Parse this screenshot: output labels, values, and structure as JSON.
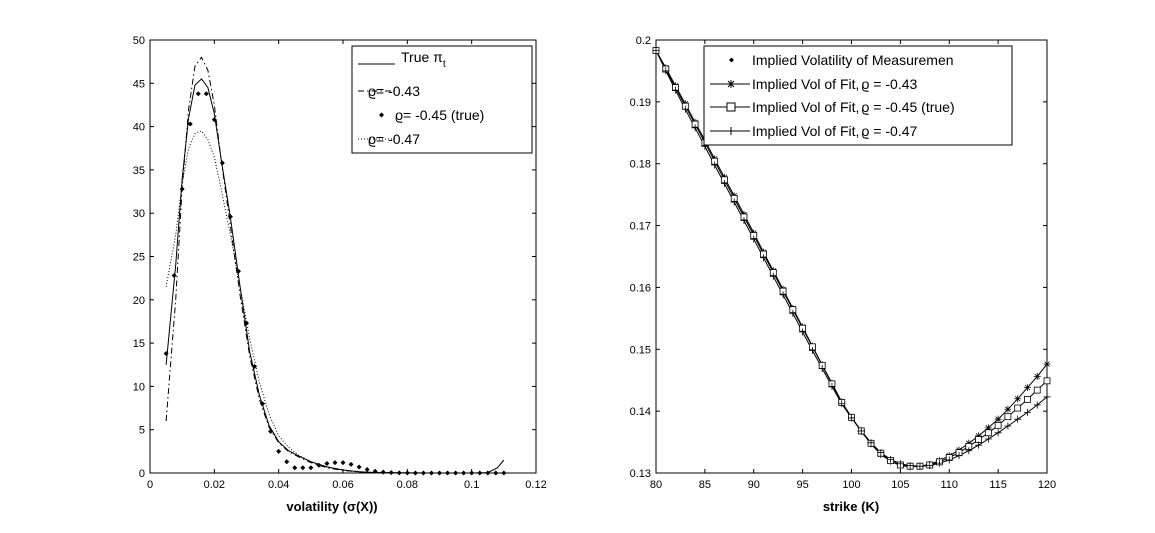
{
  "chart_data": [
    {
      "type": "line",
      "xlabel": "volatility (σ(X))",
      "ylabel": "",
      "xlim": [
        0,
        0.12
      ],
      "ylim": [
        0,
        50
      ],
      "xticks": [
        "0",
        "0.02",
        "0.04",
        "0.06",
        "0.08",
        "0.1",
        "0.12"
      ],
      "yticks": [
        "0",
        "5",
        "10",
        "15",
        "20",
        "25",
        "30",
        "35",
        "40",
        "45",
        "50"
      ],
      "legend_position": "top-right",
      "series": [
        {
          "name": "True πt",
          "legend_label": "True π",
          "legend_sub": "t",
          "style": "solid",
          "x": [
            0.005,
            0.008,
            0.01,
            0.012,
            0.014,
            0.016,
            0.018,
            0.02,
            0.022,
            0.025,
            0.028,
            0.031,
            0.034,
            0.037,
            0.04,
            0.043,
            0.046,
            0.05,
            0.055,
            0.06,
            0.065,
            0.07,
            0.08,
            0.09,
            0.1,
            0.105,
            0.108,
            0.11
          ],
          "values": [
            12.5,
            24,
            34,
            41,
            44.8,
            45.5,
            44.5,
            41.5,
            36.5,
            29.5,
            21.5,
            14,
            9,
            5.5,
            3.6,
            2.6,
            2.0,
            1.3,
            0.7,
            0.35,
            0.15,
            0.05,
            0.01,
            0.0,
            0.0,
            0.05,
            0.6,
            1.5
          ]
        },
        {
          "name": "ϱ= -0.43",
          "legend_label": "ϱ= -0.43",
          "style": "dashdot",
          "x": [
            0.005,
            0.008,
            0.01,
            0.012,
            0.014,
            0.016,
            0.018,
            0.02,
            0.022,
            0.025,
            0.028,
            0.031,
            0.034,
            0.037,
            0.04,
            0.043,
            0.046,
            0.05,
            0.055,
            0.06,
            0.065,
            0.07,
            0.08,
            0.09,
            0.1,
            0.11
          ],
          "values": [
            6,
            20,
            33,
            42,
            47,
            48,
            46.5,
            42.5,
            36.5,
            28.5,
            20.5,
            13.5,
            8.5,
            5.3,
            3.5,
            2.5,
            1.9,
            1.2,
            0.6,
            0.3,
            0.12,
            0.05,
            0.01,
            0.0,
            0.0,
            0.0
          ]
        },
        {
          "name": "ϱ= -0.45 (true)",
          "legend_label": "ϱ= -0.45 (true)",
          "style": "dots",
          "x": [
            0.005,
            0.0075,
            0.01,
            0.0125,
            0.015,
            0.0175,
            0.02,
            0.0225,
            0.025,
            0.0275,
            0.03,
            0.0325,
            0.035,
            0.0375,
            0.04,
            0.0425,
            0.045,
            0.0475,
            0.05,
            0.0525,
            0.055,
            0.0575,
            0.06,
            0.0625,
            0.065,
            0.0675,
            0.07,
            0.0725,
            0.075,
            0.0775,
            0.08,
            0.0825,
            0.085,
            0.0875,
            0.09,
            0.0925,
            0.095,
            0.0975,
            0.1,
            0.1025,
            0.105,
            0.1075,
            0.11
          ],
          "values": [
            13.8,
            22.8,
            32.8,
            40.3,
            43.8,
            43.8,
            40.8,
            35.8,
            29.6,
            23.3,
            17.3,
            12.3,
            8.0,
            4.8,
            2.5,
            1.3,
            0.6,
            0.6,
            0.6,
            0.9,
            1.1,
            1.2,
            1.2,
            1.0,
            0.7,
            0.4,
            0.2,
            0.1,
            0.05,
            0.02,
            0.01,
            0.0,
            0.0,
            0.0,
            0.0,
            0.0,
            0.0,
            0.0,
            0.0,
            0.0,
            0.0,
            0.0,
            0.0
          ]
        },
        {
          "name": "ϱ= -0.47",
          "legend_label": "ϱ= -0.47",
          "style": "dotted",
          "x": [
            0.005,
            0.008,
            0.01,
            0.012,
            0.014,
            0.016,
            0.018,
            0.02,
            0.022,
            0.025,
            0.028,
            0.031,
            0.034,
            0.037,
            0.04,
            0.043,
            0.046,
            0.05,
            0.055,
            0.06,
            0.065,
            0.07,
            0.08,
            0.09,
            0.1,
            0.11
          ],
          "values": [
            21.5,
            27.5,
            33.5,
            37.5,
            39.2,
            39.5,
            38.5,
            36.5,
            33,
            27.5,
            21.5,
            15.5,
            10.5,
            6.8,
            4.3,
            3.0,
            2.1,
            1.3,
            0.7,
            0.35,
            0.15,
            0.06,
            0.01,
            0.0,
            0.0,
            0.0
          ]
        }
      ]
    },
    {
      "type": "line",
      "xlabel": "strike (K)",
      "ylabel": "",
      "xlim": [
        80,
        120
      ],
      "ylim": [
        0.13,
        0.2
      ],
      "xticks": [
        "80",
        "85",
        "90",
        "95",
        "100",
        "105",
        "110",
        "115",
        "120"
      ],
      "yticks": [
        "0.13",
        "0.14",
        "0.15",
        "0.16",
        "0.17",
        "0.18",
        "0.19",
        "0.2"
      ],
      "legend_position": "top-right",
      "x": [
        80,
        81,
        82,
        83,
        84,
        85,
        86,
        87,
        88,
        89,
        90,
        91,
        92,
        93,
        94,
        95,
        96,
        97,
        98,
        99,
        100,
        101,
        102,
        103,
        104,
        105,
        106,
        107,
        108,
        109,
        110,
        111,
        112,
        113,
        114,
        115,
        116,
        117,
        118,
        119,
        120
      ],
      "series": [
        {
          "name": "Implied Volatility of Measuremen",
          "legend_label": "Implied Volatility of Measuremen",
          "style": "dots",
          "values": [
            0.1983,
            0.1952,
            0.1922,
            0.1892,
            0.1863,
            0.1833,
            0.1803,
            0.1773,
            0.1743,
            0.1713,
            0.1683,
            0.1653,
            0.1623,
            0.1593,
            0.1563,
            0.1533,
            0.1503,
            0.1473,
            0.1443,
            0.1414,
            0.139,
            0.1368,
            0.1348,
            0.1332,
            0.1321,
            0.1314,
            0.1311,
            0.1311,
            0.1313,
            0.1318,
            0.1325,
            0.1333,
            0.1343,
            0.1354,
            0.1365,
            0.1377,
            0.1391,
            0.1405,
            0.1419,
            0.1434,
            0.1449
          ]
        },
        {
          "name": "Implied Vol of Fit, ϱ = -0.43",
          "legend_label": "Implied Vol of Fit,",
          "legend_rho": "ϱ = -0.43",
          "style": "star",
          "values": [
            0.1983,
            0.1955,
            0.1926,
            0.1897,
            0.1867,
            0.1838,
            0.1808,
            0.1778,
            0.1748,
            0.1718,
            0.1688,
            0.1657,
            0.1627,
            0.1597,
            0.1566,
            0.1536,
            0.1505,
            0.1475,
            0.1445,
            0.1415,
            0.139,
            0.1367,
            0.1347,
            0.133,
            0.1319,
            0.1312,
            0.131,
            0.1311,
            0.1314,
            0.132,
            0.1328,
            0.1337,
            0.1348,
            0.136,
            0.1373,
            0.1387,
            0.1403,
            0.142,
            0.1438,
            0.1456,
            0.1476
          ]
        },
        {
          "name": "Implied Vol of Fit, ϱ = -0.45 (true)",
          "legend_label": "Implied Vol of Fit,",
          "legend_rho": "ϱ = -0.45 (true)",
          "style": "square",
          "values": [
            0.1983,
            0.1953,
            0.1923,
            0.1893,
            0.1864,
            0.1834,
            0.1804,
            0.1774,
            0.1744,
            0.1714,
            0.1684,
            0.1654,
            0.1624,
            0.1594,
            0.1564,
            0.1534,
            0.1504,
            0.1474,
            0.1444,
            0.1414,
            0.139,
            0.1368,
            0.1348,
            0.1332,
            0.132,
            0.1313,
            0.1311,
            0.1311,
            0.1313,
            0.1318,
            0.1325,
            0.1333,
            0.1343,
            0.1354,
            0.1365,
            0.1377,
            0.1391,
            0.1405,
            0.1419,
            0.1434,
            0.1449
          ]
        },
        {
          "name": "Implied Vol of Fit, ϱ = -0.47",
          "legend_label": "Implied Vol of Fit,",
          "legend_rho": "ϱ = -0.47",
          "style": "plus",
          "values": [
            0.1983,
            0.195,
            0.1919,
            0.1888,
            0.1858,
            0.1828,
            0.1798,
            0.1768,
            0.1738,
            0.1708,
            0.1678,
            0.1648,
            0.1618,
            0.1588,
            0.1558,
            0.1528,
            0.1498,
            0.1469,
            0.144,
            0.1412,
            0.1389,
            0.1368,
            0.1349,
            0.1333,
            0.1322,
            0.1315,
            0.1312,
            0.1311,
            0.1312,
            0.1316,
            0.1321,
            0.1328,
            0.1336,
            0.1345,
            0.1355,
            0.1365,
            0.1376,
            0.1387,
            0.1398,
            0.141,
            0.1423
          ]
        }
      ]
    }
  ]
}
